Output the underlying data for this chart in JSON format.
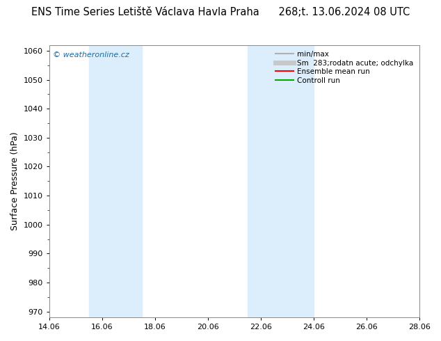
{
  "title_left": "ENS Time Series Letiště Václava Havla Praha",
  "title_right": "268;t. 13.06.2024 08 UTC",
  "ylabel": "Surface Pressure (hPa)",
  "ylim": [
    968,
    1062
  ],
  "yticks": [
    970,
    980,
    990,
    1000,
    1010,
    1020,
    1030,
    1040,
    1050,
    1060
  ],
  "xlim_start": 0.0,
  "xlim_end": 14.0,
  "xtick_labels": [
    "14.06",
    "16.06",
    "18.06",
    "20.06",
    "22.06",
    "24.06",
    "26.06",
    "28.06"
  ],
  "xtick_positions": [
    0,
    2,
    4,
    6,
    8,
    10,
    12,
    14
  ],
  "shaded_bands": [
    {
      "xmin": 1.5,
      "xmax": 3.5,
      "color": "#dceefb"
    },
    {
      "xmin": 7.5,
      "xmax": 10.0,
      "color": "#dceefb"
    }
  ],
  "watermark": "© weatheronline.cz",
  "watermark_color": "#1a6ba0",
  "legend_items": [
    {
      "label": "min/max",
      "color": "#b0b0b0",
      "lw": 1.5
    },
    {
      "label": "Sm  283;rodatn acute; odchylka",
      "color": "#c8c8c8",
      "lw": 5
    },
    {
      "label": "Ensemble mean run",
      "color": "#ff0000",
      "lw": 1.5
    },
    {
      "label": "Controll run",
      "color": "#00aa00",
      "lw": 1.5
    }
  ],
  "background_color": "#ffffff",
  "plot_bg_color": "#ffffff",
  "title_fontsize": 10.5,
  "axis_fontsize": 9,
  "tick_fontsize": 8,
  "legend_fontsize": 7.5
}
